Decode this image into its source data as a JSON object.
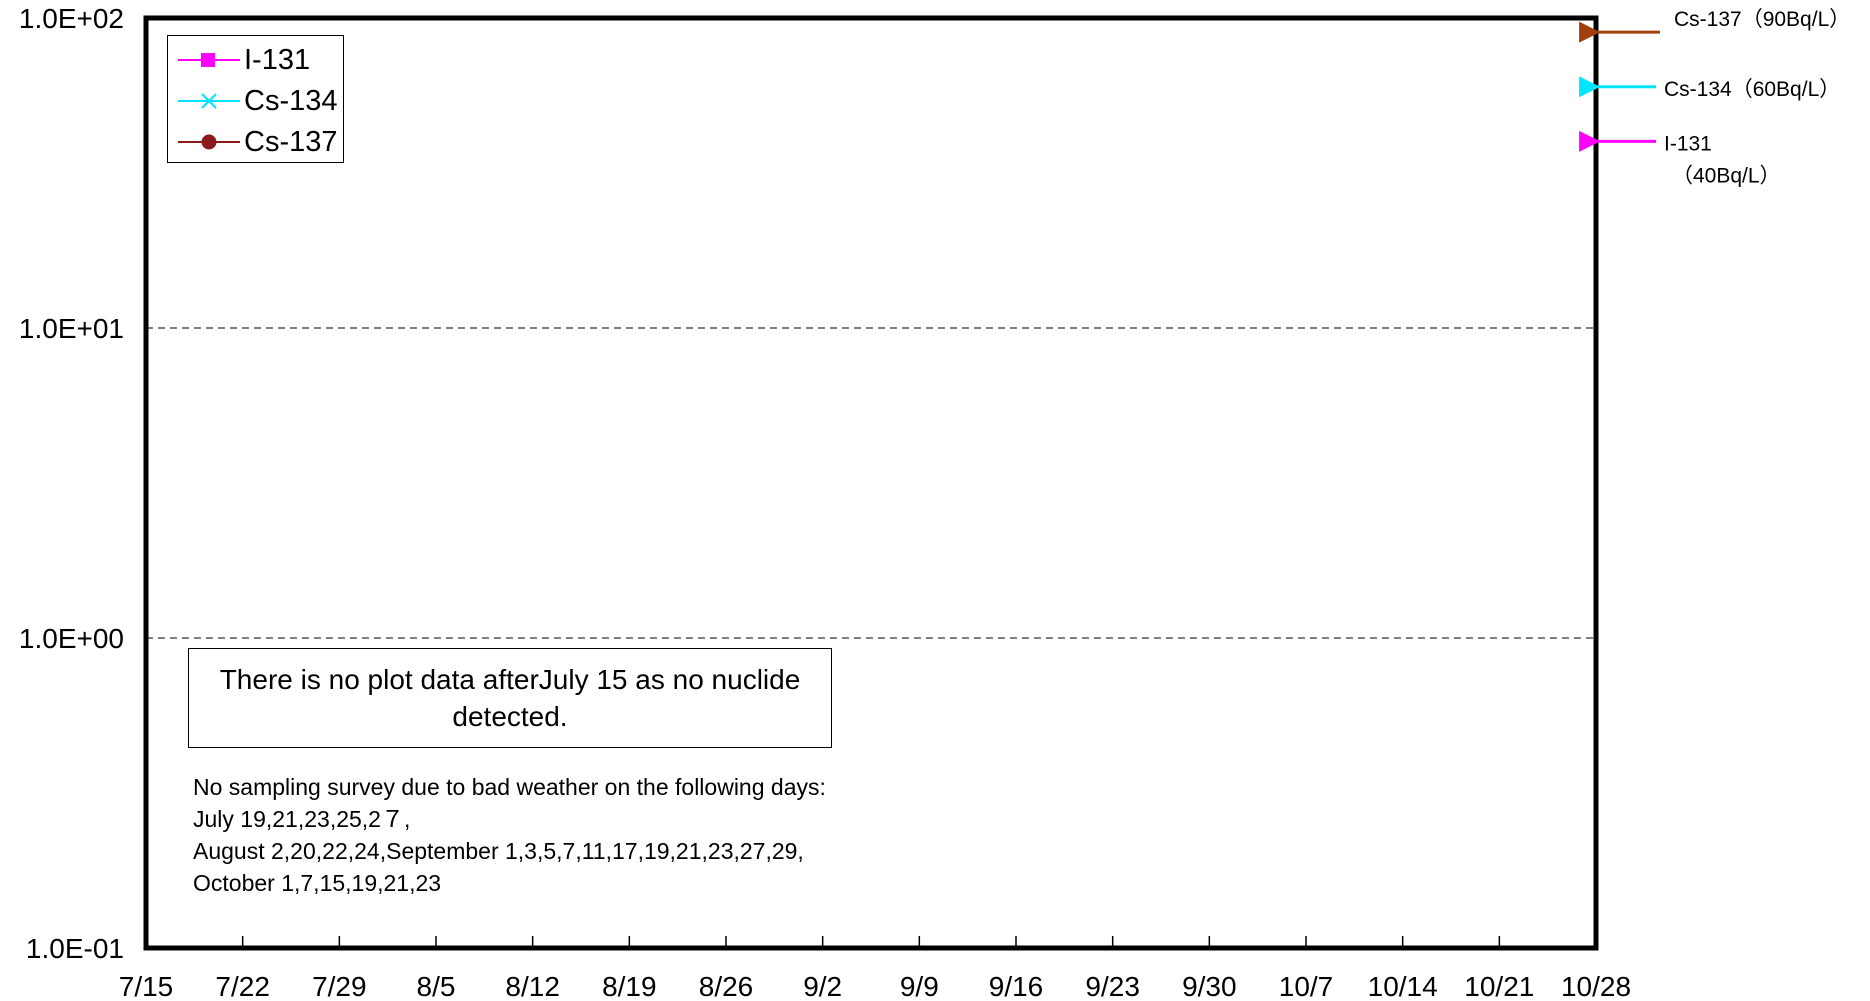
{
  "chart_data": {
    "type": "line",
    "scale": "log",
    "ylim": [
      0.1,
      100
    ],
    "y_ticks": [
      "1.0E+02",
      "1.0E+01",
      "1.0E+00",
      "1.0E-01"
    ],
    "x_ticks": [
      "7/15",
      "7/22",
      "7/29",
      "8/5",
      "8/12",
      "8/19",
      "8/26",
      "9/2",
      "9/9",
      "9/16",
      "9/23",
      "9/30",
      "10/7",
      "10/14",
      "10/21",
      "10/28"
    ],
    "grid": "horizontal dashed",
    "legend_position": "top-left",
    "series": [
      {
        "name": "I-131",
        "color": "#ff00ff",
        "marker": "square",
        "values": []
      },
      {
        "name": "Cs-134",
        "color": "#00e5ff",
        "marker": "x",
        "values": []
      },
      {
        "name": "Cs-137",
        "color": "#8b1a1a",
        "marker": "circle",
        "values": []
      }
    ],
    "reference_levels": [
      {
        "label": "Cs-137（90Bq/L）",
        "lines": [
          "Cs-137（90Bq/L）"
        ],
        "value": 90,
        "color": "#a0400f"
      },
      {
        "label": "Cs-134（60Bq/L）",
        "lines": [
          "Cs-134（60Bq/L）"
        ],
        "value": 60,
        "color": "#00e5ff"
      },
      {
        "label": "I-131（40Bq/L）",
        "lines": [
          "I-131",
          "（40Bq/L）"
        ],
        "value": 40,
        "color": "#ff00ff"
      }
    ],
    "annotations": {
      "no_data_note": "There is no plot data afterJuly 15 as no nuclide detected.",
      "survey_note": [
        "No sampling survey due to bad weather on the following days:",
        "July 19,21,23,25,2７,",
        "August 2,20,22,24,September 1,3,5,7,11,17,19,21,23,27,29,",
        "October 1,7,15,19,21,23"
      ]
    }
  }
}
